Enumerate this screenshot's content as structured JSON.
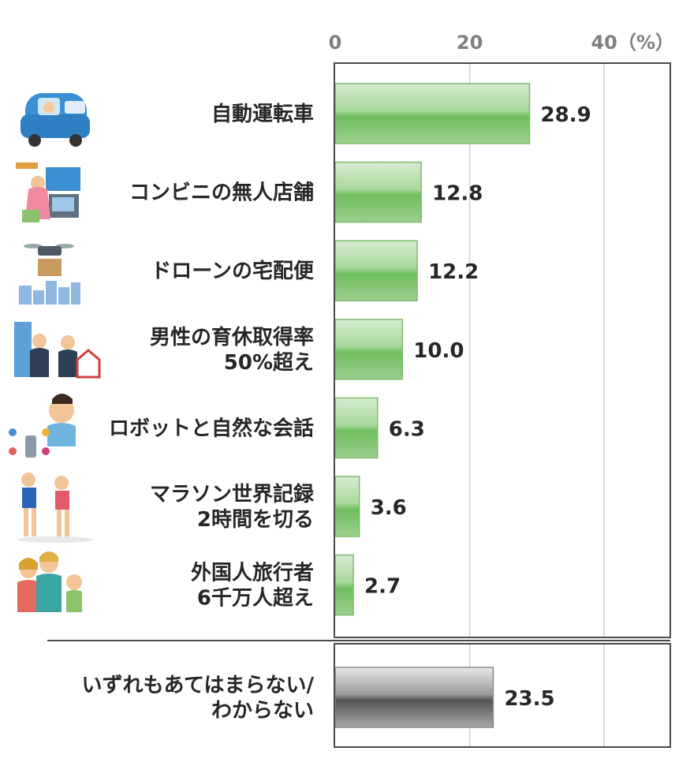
{
  "chart_data": {
    "type": "bar",
    "orientation": "horizontal",
    "unit_label": "（%）",
    "xlim": [
      0,
      50
    ],
    "x_ticks": [
      0,
      20,
      40
    ],
    "grid": true,
    "categories": [
      {
        "lines": [
          "自動運転車"
        ],
        "value": 28.9,
        "label": "28.9",
        "group": "main",
        "icon": "autonomous-car-icon"
      },
      {
        "lines": [
          "コンビニの無人店舗"
        ],
        "value": 12.8,
        "label": "12.8",
        "group": "main",
        "icon": "self-checkout-icon"
      },
      {
        "lines": [
          "ドローンの宅配便"
        ],
        "value": 12.2,
        "label": "12.2",
        "group": "main",
        "icon": "delivery-drone-icon"
      },
      {
        "lines": [
          "男性の育休取得率",
          "50%超え"
        ],
        "value": 10.0,
        "label": "10.0",
        "group": "main",
        "icon": "paternity-leave-icon"
      },
      {
        "lines": [
          "ロボットと自然な会話"
        ],
        "value": 6.3,
        "label": "6.3",
        "group": "main",
        "icon": "smart-speaker-conversation-icon"
      },
      {
        "lines": [
          "マラソン世界記録",
          "2時間を切る"
        ],
        "value": 3.6,
        "label": "3.6",
        "group": "main",
        "icon": "marathon-runners-icon"
      },
      {
        "lines": [
          "外国人旅行者",
          "6千万人超え"
        ],
        "value": 2.7,
        "label": "2.7",
        "group": "main",
        "icon": "foreign-tourists-icon"
      },
      {
        "lines": [
          "いずれもあてはまらない/",
          "わからない"
        ],
        "value": 23.5,
        "label": "23.5",
        "group": "other",
        "icon": ""
      }
    ],
    "colors": {
      "main_bar_light": "#cfe8c8",
      "main_bar_mid": "#7ec36f",
      "main_bar_border": "#7dbb6c",
      "other_bar_light": "#e2e2e2",
      "other_bar_dark": "#6a6a6a",
      "other_bar_border": "#8a8a8a",
      "frame": "#4a4a4a",
      "grid": "#d0d0d0",
      "text": "#262626",
      "tick_text": "#7f7f7f"
    }
  }
}
